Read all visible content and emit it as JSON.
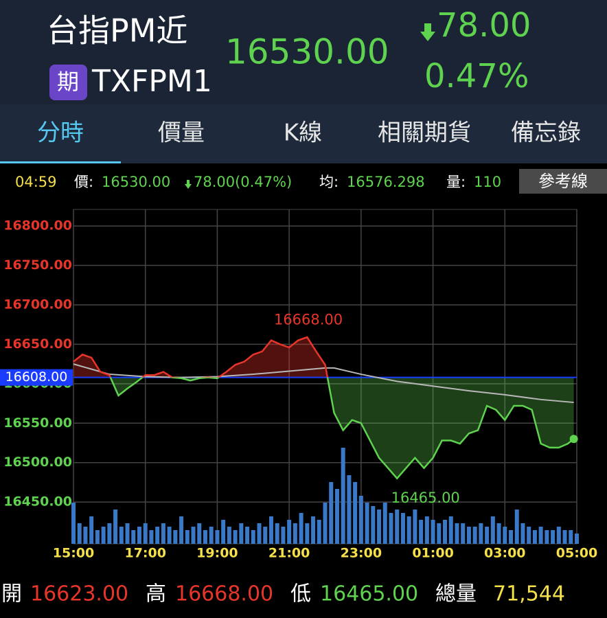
{
  "header": {
    "title": "台指PM近",
    "badge": "期",
    "code": "TXFPM1",
    "price": "16530.00",
    "change": "78.00",
    "change_pct": "0.47%"
  },
  "tabs": [
    "分時",
    "價量",
    "K線",
    "相關期貨",
    "備忘錄"
  ],
  "info_bar": {
    "time": "04:59",
    "price_label": "價:",
    "price": "16530.00",
    "change": "78.00(0.47%)",
    "avg_label": "均:",
    "avg": "16576.298",
    "volume_label": "量:",
    "volume": "110",
    "button": "參考線"
  },
  "chart_data": {
    "type": "line",
    "xlim": [
      0,
      840
    ],
    "xticks": [
      {
        "value": 0,
        "label": "15:00"
      },
      {
        "value": 120,
        "label": "17:00"
      },
      {
        "value": 240,
        "label": "19:00"
      },
      {
        "value": 360,
        "label": "21:00"
      },
      {
        "value": 480,
        "label": "23:00"
      },
      {
        "value": 600,
        "label": "01:00"
      },
      {
        "value": 720,
        "label": "03:00"
      },
      {
        "value": 840,
        "label": "05:00"
      }
    ],
    "ylim": [
      16397,
      16821
    ],
    "yticks": [
      {
        "value": 16450,
        "label": "16450.00"
      },
      {
        "value": 16500,
        "label": "16500.00"
      },
      {
        "value": 16550,
        "label": "16550.00"
      },
      {
        "value": 16600,
        "label": "16600.00"
      },
      {
        "value": 16650,
        "label": "16650.00"
      },
      {
        "value": 16700,
        "label": "16700.00"
      },
      {
        "value": 16750,
        "label": "16750.00"
      },
      {
        "value": 16800,
        "label": "16800.00"
      }
    ],
    "grid": true,
    "reference": {
      "value": 16608,
      "label": "16608.00",
      "color": "#1a3cff"
    },
    "series": [
      {
        "color_up": "#e8352a",
        "color_down": "#5fd34f",
        "x": [
          0,
          15,
          30,
          45,
          60,
          75,
          90,
          105,
          120,
          135,
          150,
          165,
          180,
          195,
          210,
          225,
          240,
          255,
          270,
          285,
          300,
          315,
          330,
          345,
          360,
          375,
          390,
          405,
          420,
          435,
          450,
          465,
          480,
          495,
          510,
          525,
          540,
          555,
          570,
          585,
          600,
          615,
          630,
          645,
          660,
          675,
          690,
          705,
          720,
          735,
          750,
          765,
          780,
          795,
          810,
          825,
          835
        ],
        "values": [
          16628,
          16637,
          16633,
          16615,
          16611,
          16585,
          16594,
          16602,
          16611,
          16611,
          16615,
          16608,
          16607,
          16604,
          16607,
          16608,
          16607,
          16615,
          16624,
          16628,
          16637,
          16641,
          16655,
          16650,
          16646,
          16655,
          16659,
          16641,
          16624,
          16563,
          16541,
          16554,
          16550,
          16528,
          16506,
          16493,
          16480,
          16493,
          16506,
          16493,
          16506,
          16528,
          16528,
          16524,
          16537,
          16541,
          16572,
          16567,
          16554,
          16572,
          16572,
          16567,
          16524,
          16519,
          16519,
          16524,
          16530
        ]
      },
      {
        "color": "#b8b8b8",
        "x": [
          0,
          60,
          120,
          180,
          240,
          300,
          360,
          420,
          435,
          480,
          540,
          600,
          660,
          720,
          780,
          835
        ],
        "values": [
          16625,
          16612,
          16609,
          16608,
          16609,
          16612,
          16616,
          16620,
          16620,
          16612,
          16603,
          16597,
          16591,
          16586,
          16580,
          16576.3
        ]
      }
    ],
    "volume": {
      "color": "#3a78c8",
      "x": [
        0,
        10,
        20,
        30,
        40,
        50,
        60,
        70,
        80,
        90,
        100,
        110,
        120,
        130,
        140,
        150,
        160,
        170,
        180,
        190,
        200,
        210,
        220,
        230,
        240,
        250,
        260,
        270,
        280,
        290,
        300,
        310,
        320,
        330,
        340,
        350,
        360,
        370,
        380,
        390,
        400,
        410,
        420,
        430,
        440,
        450,
        460,
        470,
        480,
        490,
        500,
        510,
        520,
        530,
        540,
        550,
        560,
        570,
        580,
        590,
        600,
        610,
        620,
        630,
        640,
        650,
        660,
        670,
        680,
        690,
        700,
        710,
        720,
        730,
        740,
        750,
        760,
        770,
        780,
        790,
        800,
        810,
        820,
        830,
        840
      ],
      "values": [
        60,
        30,
        25,
        40,
        20,
        25,
        30,
        50,
        25,
        30,
        20,
        25,
        30,
        20,
        25,
        30,
        25,
        20,
        40,
        20,
        25,
        30,
        20,
        25,
        20,
        35,
        25,
        20,
        30,
        25,
        20,
        30,
        25,
        40,
        30,
        25,
        35,
        30,
        45,
        30,
        40,
        35,
        60,
        90,
        80,
        140,
        100,
        90,
        70,
        60,
        55,
        50,
        60,
        45,
        50,
        45,
        40,
        50,
        35,
        40,
        35,
        30,
        35,
        40,
        30,
        30,
        25,
        25,
        30,
        25,
        40,
        30,
        25,
        20,
        50,
        30,
        25,
        20,
        25,
        20,
        20,
        25,
        20,
        20,
        15
      ]
    },
    "annotations": [
      {
        "x": 392,
        "y": 16668,
        "label": "16668.00",
        "color": "#e8352a"
      },
      {
        "x": 544,
        "y": 16465,
        "label": "16465.00",
        "color": "#5fd34f"
      }
    ]
  },
  "footer": {
    "open_label": "開",
    "open": "16623.00",
    "high_label": "高",
    "high": "16668.00",
    "low_label": "低",
    "low": "16465.00",
    "total_label": "總量",
    "total": "71,544"
  }
}
